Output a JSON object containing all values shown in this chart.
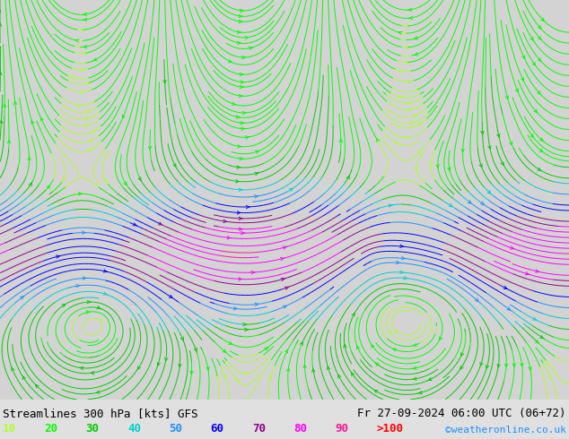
{
  "title_left": "Streamlines 300 hPa [kts] GFS",
  "title_right": "Fr 27-09-2024 06:00 UTC (06+72)",
  "credit": "©weatheronline.co.uk",
  "legend_values": [
    "10",
    "20",
    "30",
    "40",
    "50",
    "60",
    "70",
    "80",
    "90",
    ">100"
  ],
  "legend_colors": [
    "#adff2f",
    "#00ff00",
    "#00cd00",
    "#00ced1",
    "#1e90ff",
    "#0000ff",
    "#8b008b",
    "#ff00ff",
    "#ff1493",
    "#ff0000"
  ],
  "background_color": "#d3d3d3",
  "ocean_color": "#d3d3d3",
  "land_color": "#c8ffc8",
  "coast_color": "#888888",
  "map_extent": [
    60,
    200,
    -70,
    20
  ],
  "fig_width": 6.34,
  "fig_height": 4.9,
  "dpi": 100,
  "bottom_bar_color": "#e0e0e0",
  "title_fontsize": 9,
  "legend_fontsize": 9,
  "credit_color": "#1e90ff"
}
